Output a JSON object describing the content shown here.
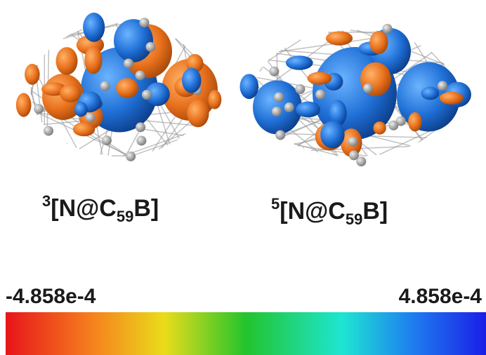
{
  "molecules": [
    {
      "multiplicity": "3",
      "prefix": "[N@C",
      "subscript": "59",
      "suffix": "B]"
    },
    {
      "multiplicity": "5",
      "prefix": "[N@C",
      "subscript": "59",
      "suffix": "B]"
    }
  ],
  "colorbar": {
    "min_label": "-4.858e-4",
    "max_label": "4.858e-4"
  }
}
